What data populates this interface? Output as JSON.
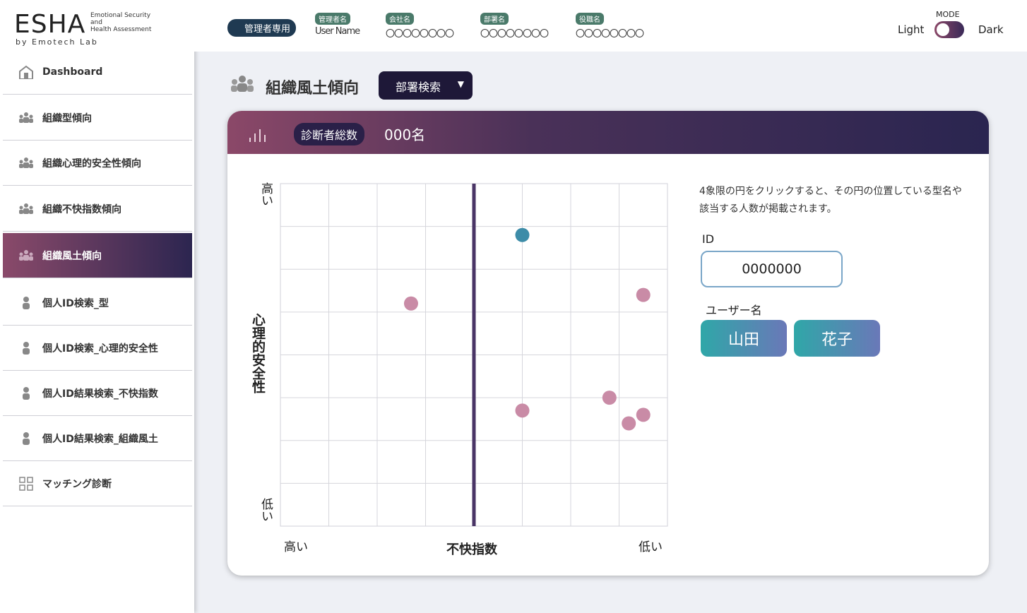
{
  "logo": {
    "title": "ESHA",
    "subtitle_lines": [
      "Emotional Security",
      "and",
      "Health Assessment"
    ],
    "byline": "by Emotech Lab"
  },
  "nav": [
    "Dashboard",
    "組織型傾向",
    "組織心理的安全性傾向",
    "組織不快指数傾向",
    "組織風土傾向",
    "個人ID検索_型",
    "個人ID検索_心理的安全性",
    "個人ID結果検索_不快指数",
    "個人ID結果検索_組織風土",
    "マッチング診断"
  ],
  "header": {
    "badge": "管理者専用",
    "fields": [
      {
        "label": "管理者名",
        "value": "User Name"
      },
      {
        "label": "会社名",
        "value": "〇〇〇〇〇〇〇〇"
      },
      {
        "label": "部署名",
        "value": "〇〇〇〇〇〇〇〇"
      },
      {
        "label": "役職名",
        "value": "〇〇〇〇〇〇〇〇"
      }
    ],
    "mode": {
      "label": "MODE",
      "light": "Light",
      "dark": "Dark"
    }
  },
  "page": {
    "title": "組織風土傾向",
    "dropdown": "部署検索"
  },
  "card": {
    "badge": "診断者総数",
    "count": "000名"
  },
  "chart_data": {
    "type": "scatter",
    "x_label": "不快指数",
    "x_left_end": "高い",
    "x_right_end": "低い",
    "y_label": "心理的安全性",
    "y_top_end": "高い",
    "y_bottom_end": "低い",
    "xlim": [
      -4,
      4
    ],
    "ylim": [
      -4,
      4
    ],
    "grid": true,
    "series": [
      {
        "color": "#3d8ca8",
        "x": [
          1.0
        ],
        "y": [
          2.8
        ]
      },
      {
        "color": "#c98ba6",
        "x": [
          -1.3,
          3.5,
          1.0,
          2.8,
          3.2,
          3.5
        ],
        "y": [
          1.2,
          1.4,
          -1.3,
          -1.0,
          -1.6,
          -1.4
        ]
      }
    ]
  },
  "panel": {
    "instruction": "4象限の円をクリックすると、その円の位置している型名や該当する人数が掲載されます。",
    "id_label": "ID",
    "id_value": "0000000",
    "user_label": "ユーザー名",
    "user_names": [
      "山田",
      "花子"
    ]
  }
}
